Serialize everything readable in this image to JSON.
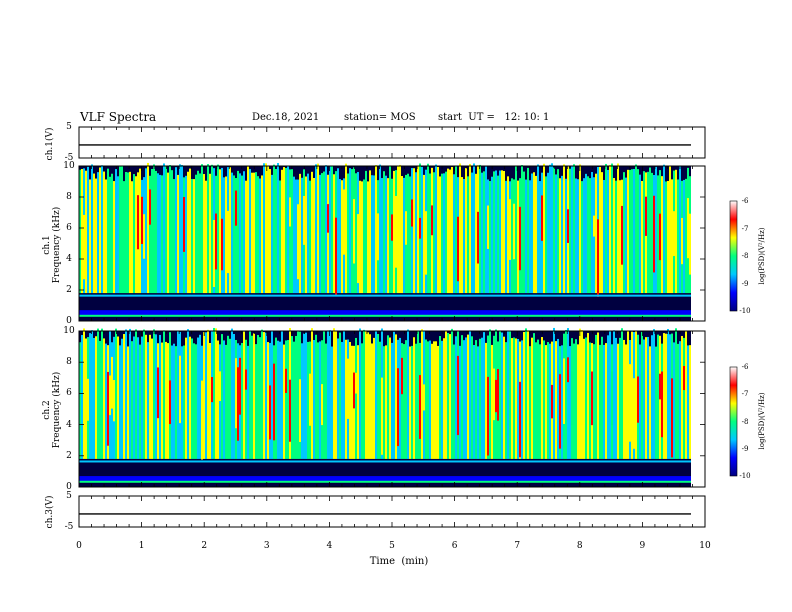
{
  "header": {
    "title": "VLF Spectra",
    "date": "Dec.18, 2021",
    "station": "station= MOS",
    "start": "start  UT =   12: 10: 1"
  },
  "chart_data": {
    "type": "heatmap",
    "xlabel": "Time  (min)",
    "xlim": [
      0,
      10
    ],
    "x_ticks": [
      "0",
      "1",
      "2",
      "3",
      "4",
      "5",
      "6",
      "7",
      "8",
      "9",
      "10"
    ],
    "panels": [
      {
        "id": "ch1-waveform",
        "type": "line",
        "ylabel": "ch.1(V)",
        "ylim": [
          -5,
          5
        ],
        "y_ticks": [
          "5",
          "-5"
        ],
        "baseline_value": 0
      },
      {
        "id": "ch1-spectrogram",
        "type": "heatmap",
        "ylabel": "ch.1\nFrequency (kHz)",
        "ylim": [
          0,
          10
        ],
        "y_ticks": [
          "0",
          "2",
          "4",
          "6",
          "8",
          "10"
        ],
        "colorbar": {
          "label": "log(PSD)(V²/Hz)",
          "range": [
            -10,
            -6
          ],
          "ticks": [
            "-6",
            "-7",
            "-8",
            "-9",
            "-10"
          ]
        }
      },
      {
        "id": "ch2-spectrogram",
        "type": "heatmap",
        "ylabel": "ch.2\nFrequency (kHz)",
        "ylim": [
          0,
          10
        ],
        "y_ticks": [
          "0",
          "2",
          "4",
          "6",
          "8",
          "10"
        ],
        "colorbar": {
          "label": "log(PSD)(V²/Hz)",
          "range": [
            -10,
            -6
          ],
          "ticks": [
            "-6",
            "-7",
            "-8",
            "-9",
            "-10"
          ]
        }
      },
      {
        "id": "ch3-waveform",
        "type": "line",
        "ylabel": "ch.3(V)",
        "ylim": [
          -5,
          5
        ],
        "y_ticks": [
          "5",
          "-5"
        ],
        "baseline_value": 0
      }
    ],
    "colormap": [
      "#000080",
      "#0000ff",
      "#00c8ff",
      "#00ff80",
      "#ffff00",
      "#ff0000",
      "#ffffff"
    ],
    "grid": false
  }
}
